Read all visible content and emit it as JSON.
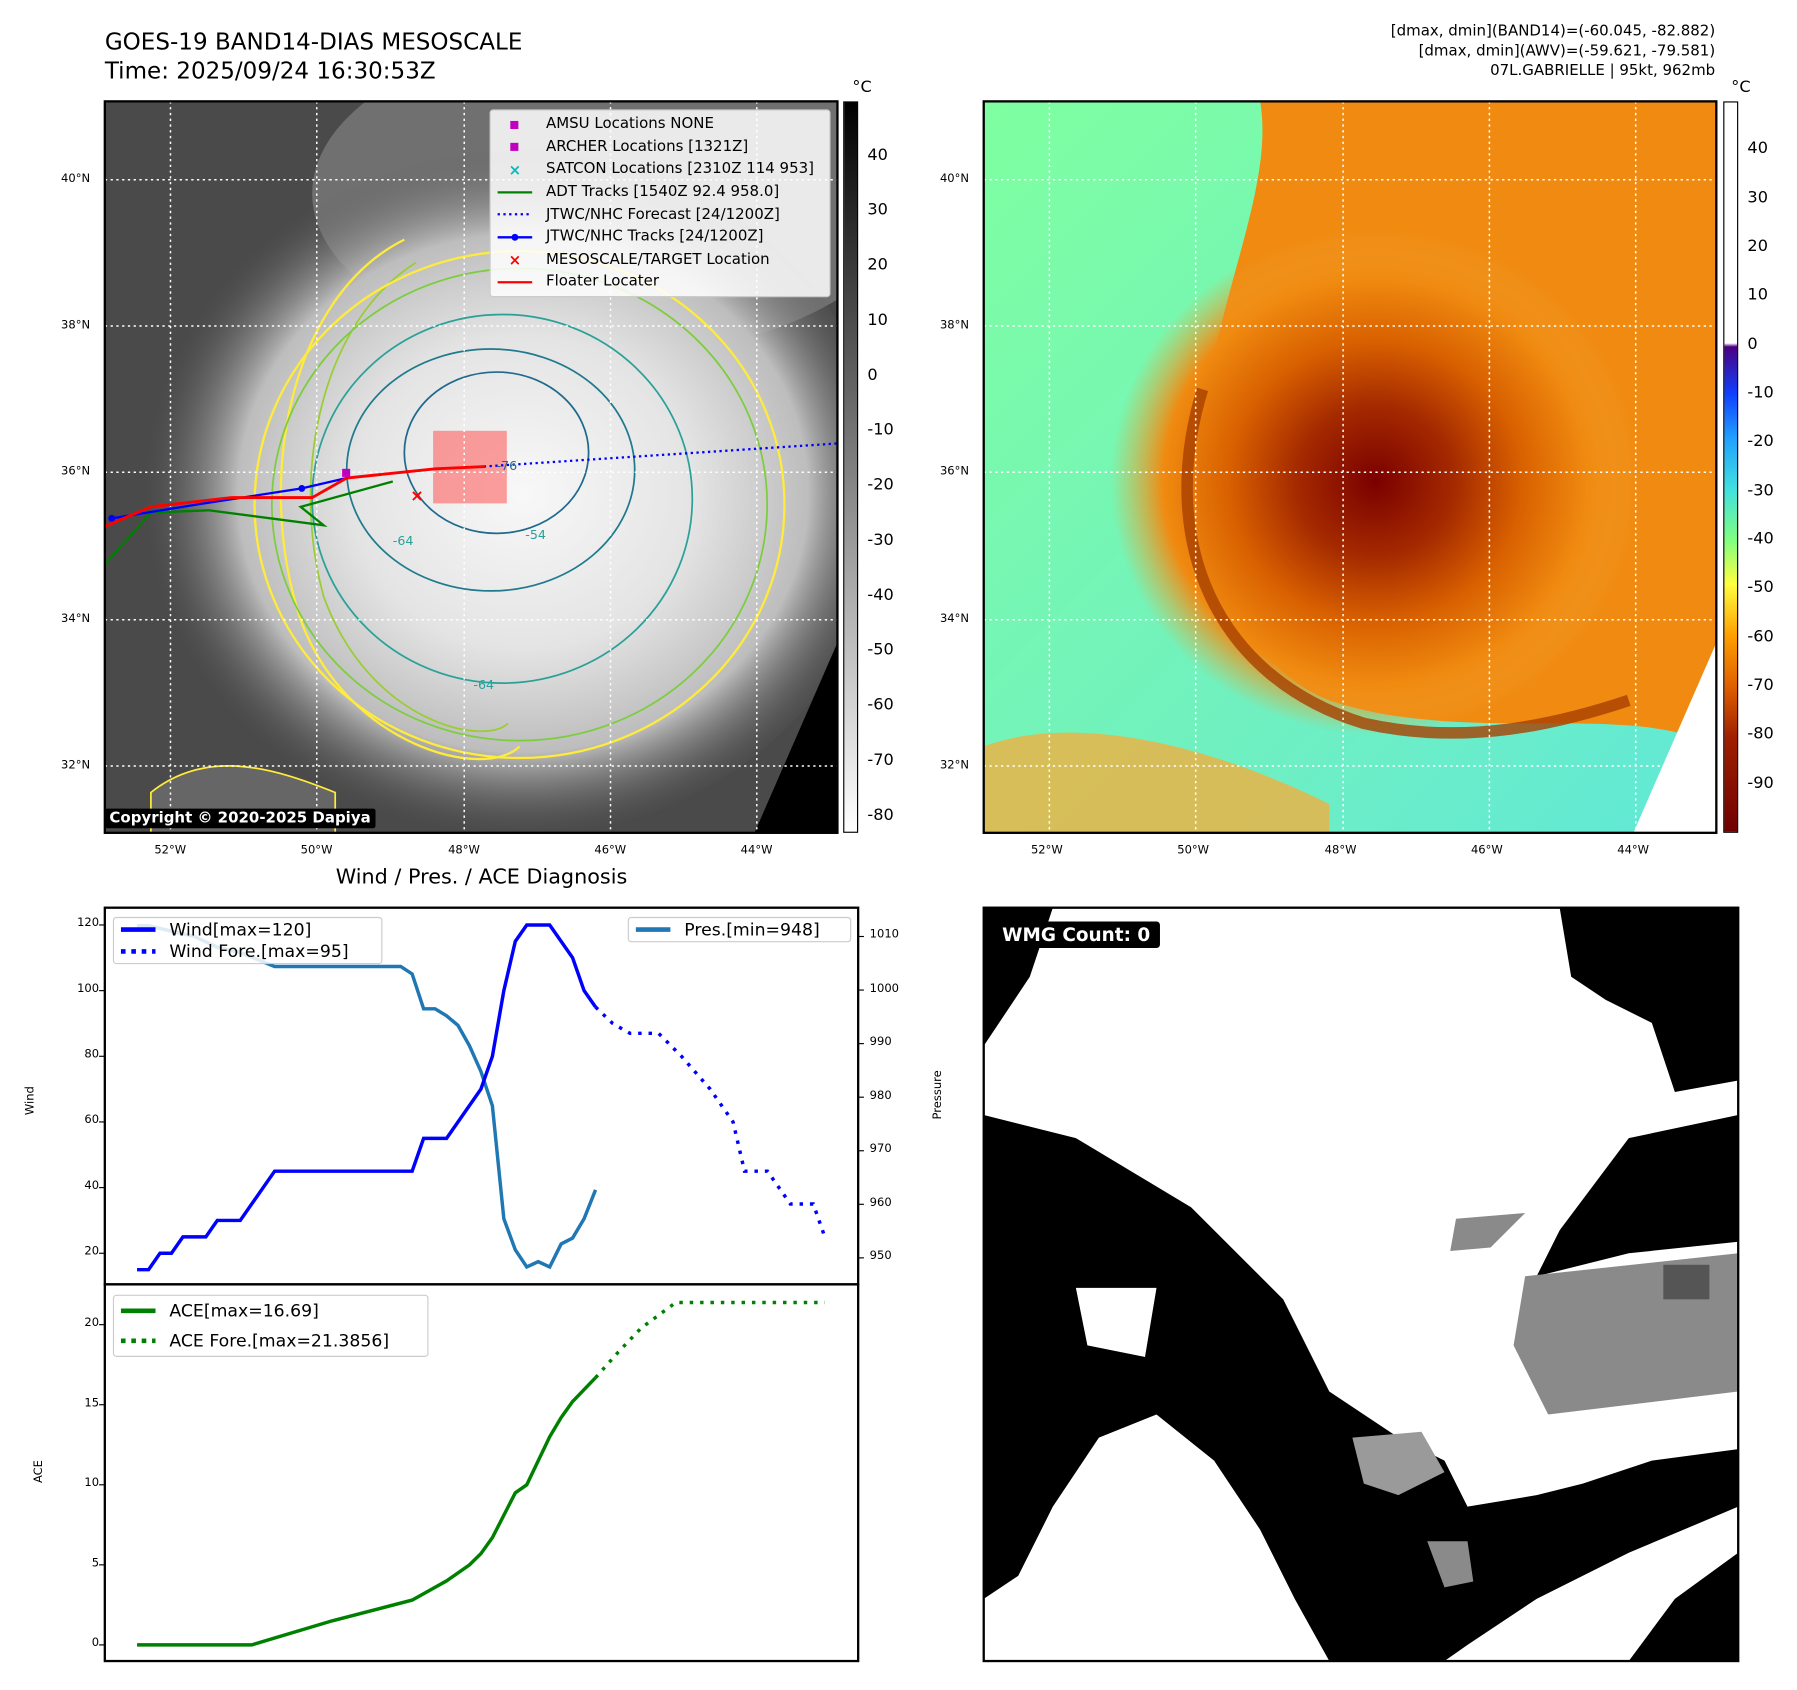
{
  "header": {
    "title": "GOES-19 BAND14-DIAS MESOSCALE",
    "time": "Time: 2025/09/24 16:30:53Z",
    "info": [
      "[dmax, dmin](BAND14)=(-60.045, -82.882)",
      "[dmax, dmin](AWV)=(-59.621, -79.581)",
      "07L.GABRIELLE | 95kt, 962mb"
    ]
  },
  "map": {
    "lat_labels": [
      "40°N",
      "38°N",
      "36°N",
      "34°N",
      "32°N"
    ],
    "lon_labels": [
      "52°W",
      "50°W",
      "48°W",
      "46°W",
      "44°W"
    ],
    "legend": [
      {
        "label": "AMSU Locations NONE",
        "color": "#c000c0",
        "marker": "square"
      },
      {
        "label": "ARCHER Locations [1321Z]",
        "color": "#c000c0",
        "marker": "square"
      },
      {
        "label": "SATCON Locations [2310Z 114 953]",
        "color": "#00bcbc",
        "marker": "x"
      },
      {
        "label": "ADT Tracks [1540Z 92.4 958.0]",
        "color": "#008000",
        "marker": "line"
      },
      {
        "label": "JTWC/NHC Forecast [24/1200Z]",
        "color": "#0000ff",
        "marker": "dots"
      },
      {
        "label": "JTWC/NHC Tracks [24/1200Z]",
        "color": "#0000ff",
        "marker": "linedot"
      },
      {
        "label": "MESOSCALE/TARGET Location",
        "color": "#ff0000",
        "marker": "x"
      },
      {
        "label": "Floater Locater",
        "color": "#ff0000",
        "marker": "line"
      }
    ],
    "copyright": "Copyright © 2020-2025 Dapiya",
    "contour_labels": [
      "-76",
      "-54",
      "-64",
      "-64",
      "-54"
    ],
    "colorbar_unit": "°C",
    "colorbar_ticks": [
      40,
      30,
      20,
      10,
      0,
      -10,
      -20,
      -30,
      -40,
      -50,
      -60,
      -70,
      -80
    ],
    "colorbar_range": [
      -83,
      50
    ]
  },
  "awv": {
    "lat_labels": [
      "40°N",
      "38°N",
      "36°N",
      "34°N",
      "32°N"
    ],
    "lon_labels": [
      "52°W",
      "50°W",
      "48°W",
      "46°W",
      "44°W"
    ],
    "colorbar_unit": "°C",
    "colorbar_ticks": [
      40,
      30,
      20,
      10,
      0,
      -10,
      -20,
      -30,
      -40,
      -50,
      -60,
      -70,
      -80,
      -90
    ],
    "colorbar_range": [
      -100,
      50
    ]
  },
  "wmg": {
    "label": "WMG Count: 0"
  },
  "chart_data": [
    {
      "type": "line",
      "title": "Wind / Pres. / ACE Diagnosis",
      "ylabel": "Wind",
      "y2label": "Pressure",
      "ylim": [
        10,
        125
      ],
      "y2lim": [
        943,
        1013
      ],
      "xlim": [
        -3,
        63
      ],
      "yticks": [
        20,
        40,
        60,
        80,
        100,
        120
      ],
      "y2ticks": [
        950,
        960,
        970,
        980,
        990,
        1000,
        1010
      ],
      "series": [
        {
          "name": "Wind[max=120]",
          "axis": "left",
          "color": "#0000ff",
          "style": "solid",
          "points": [
            [
              0,
              15
            ],
            [
              1,
              15
            ],
            [
              2,
              20
            ],
            [
              3,
              20
            ],
            [
              4,
              25
            ],
            [
              6,
              25
            ],
            [
              7,
              30
            ],
            [
              9,
              30
            ],
            [
              12,
              45
            ],
            [
              24,
              45
            ],
            [
              25,
              55
            ],
            [
              27,
              55
            ],
            [
              30,
              70
            ],
            [
              31,
              80
            ],
            [
              32,
              100
            ],
            [
              33,
              115
            ],
            [
              34,
              120
            ],
            [
              36,
              120
            ],
            [
              38,
              110
            ],
            [
              39,
              100
            ],
            [
              40,
              95
            ]
          ]
        },
        {
          "name": "Wind Fore.[max=95]",
          "axis": "left",
          "color": "#0000ff",
          "style": "dotted",
          "points": [
            [
              40,
              95
            ],
            [
              41.5,
              90
            ],
            [
              43,
              87
            ],
            [
              45.5,
              87
            ],
            [
              47.5,
              80
            ],
            [
              50,
              70
            ],
            [
              52,
              60
            ],
            [
              53,
              45
            ],
            [
              55,
              45
            ],
            [
              57,
              35
            ],
            [
              59,
              35
            ],
            [
              60,
              25
            ]
          ]
        },
        {
          "name": "Pres.[min=948]",
          "axis": "right",
          "color": "#1f77b4",
          "style": "solid",
          "points": [
            [
              0,
              1012
            ],
            [
              1,
              1012
            ],
            [
              3,
              1011
            ],
            [
              5,
              1010
            ],
            [
              7,
              1008
            ],
            [
              9,
              1007
            ],
            [
              12,
              1004.4
            ],
            [
              23,
              1004.4
            ],
            [
              24,
              1003
            ],
            [
              25,
              996.5
            ],
            [
              26,
              996.5
            ],
            [
              27,
              995.2
            ],
            [
              28,
              993.4
            ],
            [
              29,
              989.6
            ],
            [
              30,
              984.8
            ],
            [
              31,
              978.4
            ],
            [
              32,
              957.3
            ],
            [
              33,
              951.5
            ],
            [
              34,
              948.3
            ],
            [
              35,
              949.3
            ],
            [
              36,
              948.3
            ],
            [
              37,
              952.6
            ],
            [
              38,
              953.7
            ],
            [
              39,
              957.3
            ],
            [
              40,
              962.7
            ]
          ]
        }
      ]
    },
    {
      "type": "line",
      "ylabel": "ACE",
      "ylim": [
        -1,
        23
      ],
      "xlim": [
        -3,
        63
      ],
      "yticks": [
        0,
        5,
        10,
        15,
        20
      ],
      "series": [
        {
          "name": "ACE[max=16.69]",
          "color": "#008000",
          "style": "solid",
          "points": [
            [
              0,
              0
            ],
            [
              10,
              0
            ],
            [
              17,
              1.5
            ],
            [
              24,
              2.8
            ],
            [
              27,
              4
            ],
            [
              29,
              5
            ],
            [
              30,
              5.7
            ],
            [
              31,
              6.7
            ],
            [
              33,
              9.5
            ],
            [
              34,
              10
            ],
            [
              35,
              11.5
            ],
            [
              36,
              13
            ],
            [
              37,
              14.2
            ],
            [
              38,
              15.2
            ],
            [
              40,
              16.69
            ]
          ]
        },
        {
          "name": "ACE Fore.[max=21.3856]",
          "color": "#008000",
          "style": "dotted",
          "points": [
            [
              40,
              16.69
            ],
            [
              42,
              18.3
            ],
            [
              44,
              19.8
            ],
            [
              47,
              21.3856
            ],
            [
              60,
              21.3856
            ]
          ]
        }
      ]
    }
  ]
}
